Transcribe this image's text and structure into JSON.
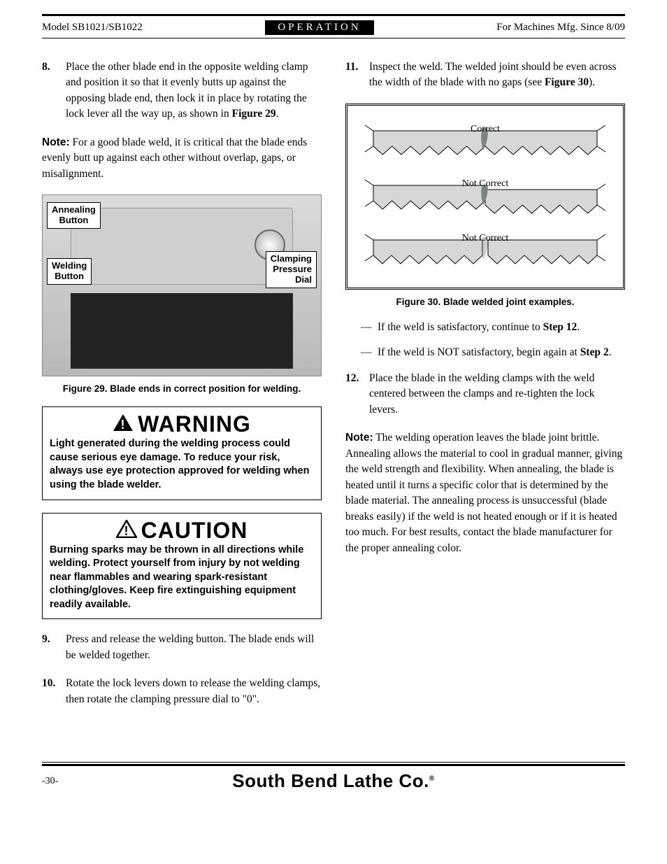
{
  "header": {
    "left": "Model SB1021/SB1022",
    "center": "OPERATION",
    "right": "For Machines Mfg. Since 8/09"
  },
  "left_col": {
    "step8": {
      "num": "8.",
      "text_a": "Place the other blade end in the opposite welding clamp and position it so that it evenly butts up against the opposing blade end, then lock it in place by rotating the lock lever all the way up, as shown in ",
      "ref": "Figure 29",
      "text_b": "."
    },
    "note1": {
      "label": "Note:",
      "text": " For a good blade weld, it is critical that the blade ends evenly butt up against each other without overlap, gaps, or misalignment."
    },
    "fig29": {
      "labels": {
        "annealing": "Annealing\nButton",
        "welding": "Welding\nButton",
        "clamping": "Clamping\nPressure\nDial"
      },
      "caption": "Figure 29. Blade ends in correct position for welding."
    },
    "warning": {
      "title": "WARNING",
      "body": "Light generated during the welding process could cause serious eye damage. To reduce your risk, always use eye protection approved for welding when using the blade welder."
    },
    "caution": {
      "title": "CAUTION",
      "body": "Burning sparks may be thrown in all directions while welding. Protect yourself from injury by not welding near flammables and wearing spark-resistant clothing/gloves. Keep fire extinguishing equipment readily available."
    },
    "step9": {
      "num": "9.",
      "text": "Press and release the welding button. The blade ends will be welded together."
    },
    "step10": {
      "num": "10.",
      "text": "Rotate the lock levers down to release the welding clamps, then rotate the clamping pressure dial to \"0\"."
    }
  },
  "right_col": {
    "step11": {
      "num": "11.",
      "text_a": "Inspect the weld. The welded joint should be even across the width of the blade with no gaps (see ",
      "ref": "Figure 30",
      "text_b": ")."
    },
    "fig30": {
      "rows": [
        {
          "label": "Correct",
          "gap": false,
          "offset": 0
        },
        {
          "label": "Not Correct",
          "gap": false,
          "offset": 6
        },
        {
          "label": "Not Correct",
          "gap": true,
          "offset": 0
        }
      ],
      "blade_fill": "#d7d7d7",
      "weld_fill": "#7d837d",
      "stroke": "#000000",
      "caption": "Figure 30. Blade welded joint examples."
    },
    "dash1": {
      "text_a": "If the weld is satisfactory, continue to ",
      "ref": "Step 12",
      "text_b": "."
    },
    "dash2": {
      "text_a": "If the weld is NOT satisfactory, begin again at ",
      "ref": "Step 2",
      "text_b": "."
    },
    "step12": {
      "num": "12.",
      "text": "Place the blade in the welding clamps with the weld centered between the clamps and re-tighten the lock levers."
    },
    "note2": {
      "label": "Note:",
      "text": " The welding operation leaves the blade joint brittle. Annealing allows the material to cool in gradual manner, giving the weld strength and flexibility. When annealing, the blade is heated until it turns a specific color that is determined by the blade material. The annealing process is unsuccessful (blade breaks easily) if the weld is not heated enough or if it is heated too much. For best results, contact the blade manufacturer for the proper annealing color."
    }
  },
  "footer": {
    "page": "-30-",
    "company": "South Bend Lathe Co."
  }
}
